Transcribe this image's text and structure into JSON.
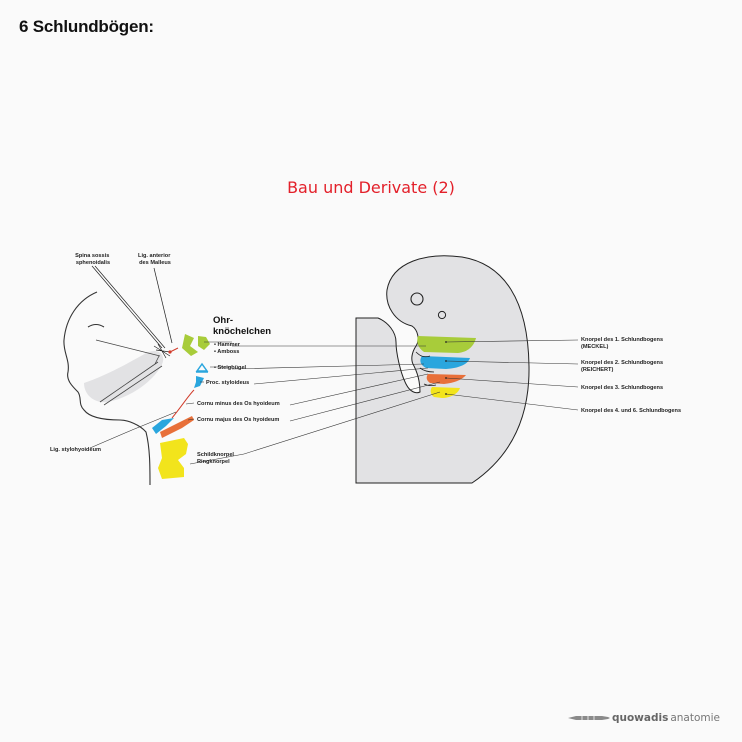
{
  "header": {
    "title": "6 Schlundbögen:"
  },
  "diagram": {
    "subtitle": "Bau und Derivate (2)",
    "left_labels": {
      "spina": [
        "Spina sossis",
        "sphenoidalis"
      ],
      "lig_anterior": [
        "Lig. anterior",
        "des Malleus"
      ],
      "ohr": [
        "Ohr-",
        "knöchelchen"
      ],
      "hammer": "• Hammer",
      "amboss": "• Amboss",
      "steigbuegel": "• Steigbügel",
      "proc": "Proc. styloideus",
      "cornu_minus": "Cornu minus des Os hyoideum",
      "cornu_majus": "Cornu majus des Os hyoideum",
      "lig_stylo": "Lig. stylohyoideum",
      "schild": [
        "Schildknorpel",
        "Ringknorpel"
      ]
    },
    "right_labels": {
      "arch1": [
        "Knorpel des 1. Schlundbogens",
        "(MECKEL)"
      ],
      "arch2": [
        "Knorpel des 2. Schlundbogens",
        "(REICHERT)"
      ],
      "arch3": "Knorpel des 3. Schlundbogens",
      "arch46": "Knorpel des 4. und 6. Schlundbogens"
    },
    "colors": {
      "arch1": "#a8cc3a",
      "arch2": "#2aa6de",
      "arch3": "#e8703a",
      "arch46": "#f2e41c",
      "embryo": "#e2e2e4",
      "ear": "#e0e0e2"
    }
  },
  "brand": {
    "strong": "quowadis",
    "light": " anatomie"
  }
}
